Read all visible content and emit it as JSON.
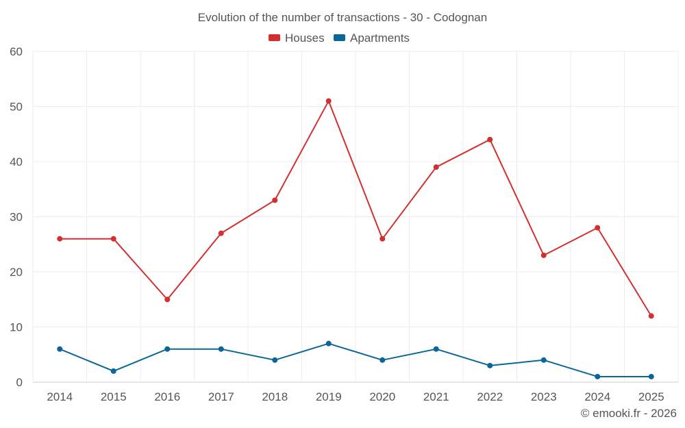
{
  "chart_data": {
    "type": "line",
    "title": "Evolution of the number of transactions - 30 - Codognan",
    "categories": [
      "2014",
      "2015",
      "2016",
      "2017",
      "2018",
      "2019",
      "2020",
      "2021",
      "2022",
      "2023",
      "2024",
      "2025"
    ],
    "ylim": [
      0,
      60
    ],
    "yticks": [
      0,
      10,
      20,
      30,
      40,
      50,
      60
    ],
    "grid": true,
    "legend_position": "top-center",
    "series": [
      {
        "name": "Houses",
        "color": "#d32f2f",
        "values": [
          26,
          26,
          15,
          27,
          33,
          51,
          26,
          39,
          44,
          23,
          28,
          12
        ]
      },
      {
        "name": "Apartments",
        "color": "#0a6699",
        "values": [
          6,
          2,
          6,
          6,
          4,
          7,
          4,
          6,
          3,
          4,
          1,
          1
        ]
      }
    ]
  },
  "credit": "© emooki.fr - 2026"
}
